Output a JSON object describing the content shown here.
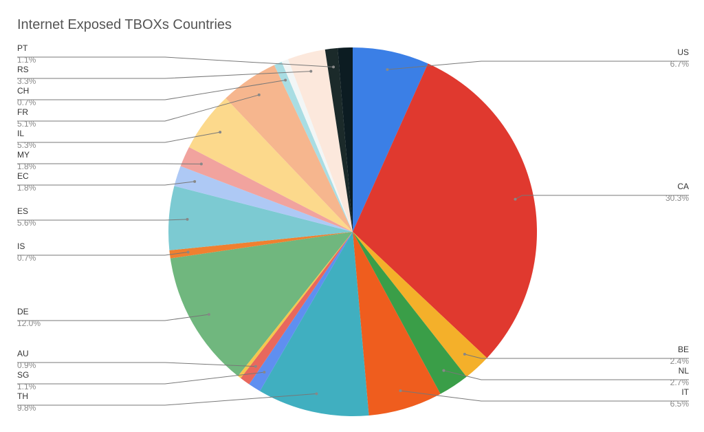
{
  "chart_data": {
    "type": "pie",
    "title": "Internet Exposed TBOXs Countries",
    "categories": [
      "US",
      "CA",
      "BE",
      "NL",
      "IT",
      "TH",
      "SG",
      "AU",
      null,
      "DE",
      "IS",
      "ES",
      "EC",
      "MY",
      "IL",
      "FR",
      "CH",
      null,
      "RS",
      "PT",
      null
    ],
    "values": [
      6.7,
      30.3,
      2.4,
      2.7,
      6.5,
      9.8,
      1.1,
      0.9,
      0.3,
      12.0,
      0.7,
      5.6,
      1.8,
      1.8,
      5.3,
      5.1,
      0.7,
      0.6,
      3.3,
      1.1,
      1.3
    ],
    "value_labels": [
      "6.7%",
      "30.3%",
      "2.4%",
      "2.7%",
      "6.5%",
      "9.8%",
      "1.1%",
      "0.9%",
      null,
      "12.0%",
      "0.7%",
      "5.6%",
      "1.8%",
      "1.8%",
      "5.3%",
      "5.1%",
      "0.7%",
      null,
      "3.3%",
      "1.1%",
      null
    ],
    "colors": [
      "#3b7fe6",
      "#e0392f",
      "#f4b02a",
      "#3a9e48",
      "#ef5d1e",
      "#40afc0",
      "#5f8ff0",
      "#e8685d",
      "#f5c74d",
      "#70b77e",
      "#f08030",
      "#7ccad2",
      "#aec9f5",
      "#f1a39e",
      "#fcd98c",
      "#f6b68e",
      "#a9dde3",
      "#f2f6f6",
      "#fce8dc",
      "#1b2a2a",
      "#0c1c22"
    ]
  }
}
